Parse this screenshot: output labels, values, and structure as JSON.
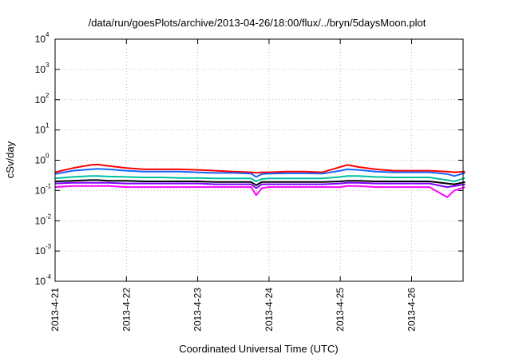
{
  "chart_data": {
    "type": "line",
    "title": "/data/run/goesPlots/archive/2013-04-26/18:00/flux/../bryn/5daysMoon.plot",
    "xlabel": "Coordinated Universal Time (UTC)",
    "ylabel": "cSv/day",
    "yscale": "log",
    "ylim": [
      0.0001,
      10000
    ],
    "xlim": [
      "2013-04-21",
      "2013-04-26 18:00"
    ],
    "x_ticks": [
      "2013-4-21",
      "2013-4-22",
      "2013-4-23",
      "2013-4-24",
      "2013-4-25",
      "2013-4-26"
    ],
    "y_ticks": [
      {
        "value": 0.0001,
        "base": "10",
        "exp": "-4"
      },
      {
        "value": 0.001,
        "base": "10",
        "exp": "-3"
      },
      {
        "value": 0.01,
        "base": "10",
        "exp": "-2"
      },
      {
        "value": 0.1,
        "base": "10",
        "exp": "-1"
      },
      {
        "value": 1,
        "base": "10",
        "exp": "0"
      },
      {
        "value": 10,
        "base": "10",
        "exp": "1"
      },
      {
        "value": 100,
        "base": "10",
        "exp": "2"
      },
      {
        "value": 1000,
        "base": "10",
        "exp": "3"
      },
      {
        "value": 10000,
        "base": "10",
        "exp": "4"
      }
    ],
    "grid": true,
    "x_days": [
      0,
      0.25,
      0.5,
      0.6,
      0.75,
      1.0,
      1.25,
      1.5,
      1.75,
      2.0,
      2.25,
      2.5,
      2.75,
      2.82,
      2.9,
      3.0,
      3.25,
      3.5,
      3.75,
      4.0,
      4.1,
      4.25,
      4.5,
      4.75,
      5.0,
      5.25,
      5.5,
      5.6,
      5.75
    ],
    "series": [
      {
        "color": "#ff0000",
        "values": [
          0.4,
          0.55,
          0.7,
          0.72,
          0.65,
          0.55,
          0.5,
          0.5,
          0.5,
          0.48,
          0.45,
          0.42,
          0.4,
          0.38,
          0.4,
          0.4,
          0.42,
          0.42,
          0.4,
          0.6,
          0.7,
          0.6,
          0.5,
          0.45,
          0.45,
          0.45,
          0.42,
          0.4,
          0.42
        ]
      },
      {
        "color": "#1565ff",
        "values": [
          0.35,
          0.45,
          0.5,
          0.52,
          0.5,
          0.45,
          0.42,
          0.42,
          0.42,
          0.4,
          0.38,
          0.38,
          0.36,
          0.28,
          0.35,
          0.36,
          0.37,
          0.37,
          0.36,
          0.45,
          0.5,
          0.48,
          0.42,
          0.4,
          0.4,
          0.4,
          0.35,
          0.3,
          0.38
        ]
      },
      {
        "color": "#00c0a0",
        "values": [
          0.25,
          0.28,
          0.3,
          0.3,
          0.29,
          0.28,
          0.27,
          0.27,
          0.26,
          0.26,
          0.25,
          0.25,
          0.25,
          0.2,
          0.24,
          0.25,
          0.25,
          0.25,
          0.25,
          0.28,
          0.3,
          0.3,
          0.28,
          0.27,
          0.27,
          0.27,
          0.22,
          0.2,
          0.26
        ]
      },
      {
        "color": "#000000",
        "values": [
          0.2,
          0.21,
          0.22,
          0.22,
          0.21,
          0.21,
          0.2,
          0.2,
          0.2,
          0.2,
          0.19,
          0.19,
          0.19,
          0.15,
          0.19,
          0.19,
          0.19,
          0.19,
          0.19,
          0.2,
          0.21,
          0.21,
          0.2,
          0.2,
          0.2,
          0.2,
          0.17,
          0.16,
          0.19
        ]
      },
      {
        "color": "#8000ff",
        "values": [
          0.17,
          0.18,
          0.18,
          0.18,
          0.18,
          0.17,
          0.17,
          0.17,
          0.17,
          0.17,
          0.16,
          0.16,
          0.16,
          0.12,
          0.16,
          0.16,
          0.16,
          0.16,
          0.16,
          0.17,
          0.18,
          0.18,
          0.17,
          0.17,
          0.17,
          0.17,
          0.13,
          0.14,
          0.16
        ]
      },
      {
        "color": "#ff00ff",
        "values": [
          0.13,
          0.14,
          0.14,
          0.14,
          0.14,
          0.13,
          0.13,
          0.13,
          0.13,
          0.13,
          0.13,
          0.13,
          0.13,
          0.07,
          0.12,
          0.13,
          0.13,
          0.13,
          0.13,
          0.13,
          0.14,
          0.14,
          0.13,
          0.13,
          0.13,
          0.13,
          0.06,
          0.1,
          0.13
        ]
      }
    ]
  }
}
